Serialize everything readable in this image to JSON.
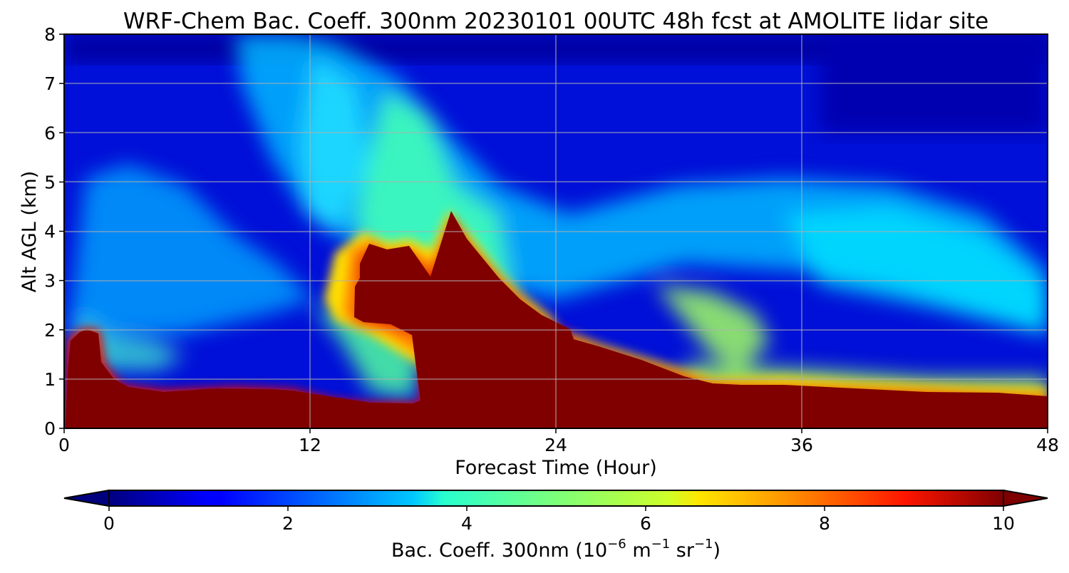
{
  "chart_data": {
    "type": "heatmap",
    "title": "WRF-Chem Bac. Coeff. 300nm  20230101 00UTC 48h fcst at AMOLITE lidar site",
    "xlabel": "Forecast Time (Hour)",
    "ylabel": "Alt AGL (km)",
    "xlim": [
      0,
      48
    ],
    "ylim": [
      0,
      8
    ],
    "x_ticks": [
      "0",
      "12",
      "24",
      "36",
      "48"
    ],
    "y_ticks": [
      "0",
      "1",
      "2",
      "3",
      "4",
      "5",
      "6",
      "7",
      "8"
    ],
    "grid": true,
    "colorbar": {
      "label_main": "Bac. Coeff. 300nm  (10",
      "label_exp1": "−6",
      "label_mid": " m",
      "label_exp2": "−1",
      "label_mid2": " sr",
      "label_exp3": "−1",
      "label_end": ")",
      "range": [
        0,
        10
      ],
      "ticks": [
        "0",
        "2",
        "4",
        "6",
        "8",
        "10"
      ],
      "extend": "both",
      "colormap": "jet"
    },
    "field_description": {
      "units": "10^-6 m^-1 sr^-1",
      "saturated_region_top_km": [
        [
          0.2,
          0.0
        ],
        [
          0.4,
          1.8
        ],
        [
          1.0,
          2.0
        ],
        [
          1.6,
          1.9
        ],
        [
          2.0,
          1.2
        ],
        [
          3.0,
          0.8
        ],
        [
          5.0,
          0.72
        ],
        [
          7.0,
          0.8
        ],
        [
          10.0,
          0.8
        ],
        [
          13.0,
          0.6
        ],
        [
          16.0,
          0.5
        ],
        [
          17.0,
          0.55
        ],
        [
          16.8,
          1.7
        ],
        [
          15.8,
          2.0
        ],
        [
          14.3,
          2.1
        ],
        [
          14.5,
          3.3
        ],
        [
          15.2,
          3.75
        ],
        [
          16.0,
          3.55
        ],
        [
          17.0,
          3.6
        ],
        [
          18.0,
          3.1
        ],
        [
          19.0,
          4.25
        ],
        [
          20.5,
          3.4
        ],
        [
          22.5,
          2.5
        ],
        [
          24.5,
          2.0
        ],
        [
          27.0,
          1.6
        ],
        [
          30.0,
          1.0
        ],
        [
          32.0,
          0.85
        ],
        [
          35.0,
          0.9
        ],
        [
          40.0,
          0.8
        ],
        [
          48.0,
          0.65
        ]
      ]
    }
  }
}
